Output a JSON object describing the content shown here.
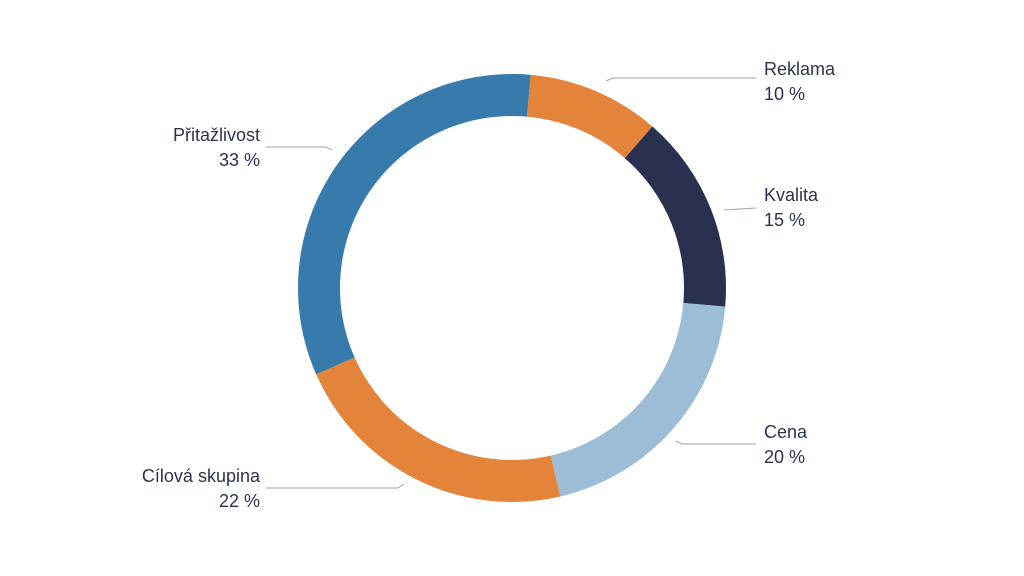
{
  "chart_data": {
    "type": "pie",
    "variant": "donut",
    "title": "",
    "legend": "none",
    "value_suffix": " %",
    "slices": [
      {
        "label": "Reklama",
        "value": 10,
        "color": "#e3843a"
      },
      {
        "label": "Kvalita",
        "value": 15,
        "color": "#2a3050"
      },
      {
        "label": "Cena",
        "value": 20,
        "color": "#9dbdd6"
      },
      {
        "label": "Cílová skupina",
        "value": 22,
        "color": "#e3843a"
      },
      {
        "label": "Přitažlivost",
        "value": 33,
        "color": "#377bad"
      }
    ]
  }
}
